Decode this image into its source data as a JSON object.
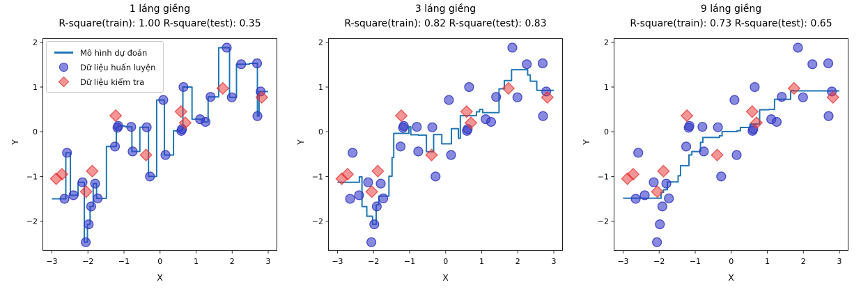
{
  "figure": {
    "background": "#ffffff"
  },
  "colors": {
    "model_line": "#1f77b4",
    "train_fill": "rgba(55,60,200,0.60)",
    "train_edge": "rgba(48,54,190,0.85)",
    "test_fill": "rgba(235,45,45,0.50)",
    "test_edge": "rgba(230,55,55,0.80)",
    "axis": "#1a1a1a",
    "text": "#000000"
  },
  "legend": {
    "position": "upper-left",
    "items": [
      {
        "icon": "model-line",
        "label": "Mô hình dự đoán"
      },
      {
        "icon": "train-point",
        "label": "Dữ liệu huấn luyện"
      },
      {
        "icon": "test-point",
        "label": "Dữ liệu kiểm tra"
      }
    ]
  },
  "chart_data": {
    "type": "scatter",
    "shared": {
      "xlabel": "X",
      "ylabel": "Y",
      "x_ticks": [
        -3,
        -2,
        -1,
        0,
        1,
        2,
        3
      ],
      "y_ticks": [
        -2,
        -1,
        0,
        1,
        2
      ],
      "xlim": [
        -3.26,
        3.25
      ],
      "ylim": [
        -2.66,
        2.09
      ],
      "line_x_range": [
        -3,
        3
      ],
      "grid": false,
      "train_points": [
        [
          -2.65,
          -1.5
        ],
        [
          -2.58,
          -0.47
        ],
        [
          -2.4,
          -1.42
        ],
        [
          -2.15,
          -1.13
        ],
        [
          -2.06,
          -2.47
        ],
        [
          -1.98,
          -2.07
        ],
        [
          -1.91,
          -1.67
        ],
        [
          -1.8,
          -1.16
        ],
        [
          -1.73,
          -1.49
        ],
        [
          -1.25,
          -0.33
        ],
        [
          -1.18,
          0.09
        ],
        [
          -1.16,
          0.13
        ],
        [
          -0.8,
          0.11
        ],
        [
          -0.76,
          -0.44
        ],
        [
          -0.37,
          0.1
        ],
        [
          -0.28,
          -1.0
        ],
        [
          0.09,
          0.71
        ],
        [
          0.15,
          -0.52
        ],
        [
          0.59,
          0.02
        ],
        [
          0.61,
          0.06
        ],
        [
          0.65,
          1.0
        ],
        [
          1.11,
          0.28
        ],
        [
          1.26,
          0.22
        ],
        [
          1.4,
          0.78
        ],
        [
          1.85,
          1.88
        ],
        [
          1.99,
          0.77
        ],
        [
          2.25,
          1.51
        ],
        [
          2.69,
          1.53
        ],
        [
          2.7,
          0.35
        ],
        [
          2.79,
          0.9
        ]
      ],
      "test_points": [
        [
          -2.88,
          -1.05
        ],
        [
          -2.72,
          -0.95
        ],
        [
          -2.05,
          -1.34
        ],
        [
          -1.88,
          -0.88
        ],
        [
          -1.23,
          0.36
        ],
        [
          -0.39,
          -0.52
        ],
        [
          0.58,
          0.45
        ],
        [
          0.7,
          0.2
        ],
        [
          1.74,
          0.97
        ],
        [
          2.82,
          0.77
        ]
      ]
    },
    "subplots": [
      {
        "k": 1,
        "title": "1 láng giềng",
        "subtitle": "R-square(train): 1.00 R-square(test): 0.35",
        "r2_train": 1.0,
        "r2_test": 0.35
      },
      {
        "k": 3,
        "title": "3 láng giềng",
        "subtitle": "R-square(train): 0.82 R-square(test): 0.83",
        "r2_train": 0.82,
        "r2_test": 0.83
      },
      {
        "k": 9,
        "title": "9 láng giềng",
        "subtitle": "R-square(train): 0.73 R-square(test): 0.65",
        "r2_train": 0.73,
        "r2_test": 0.65
      }
    ]
  }
}
